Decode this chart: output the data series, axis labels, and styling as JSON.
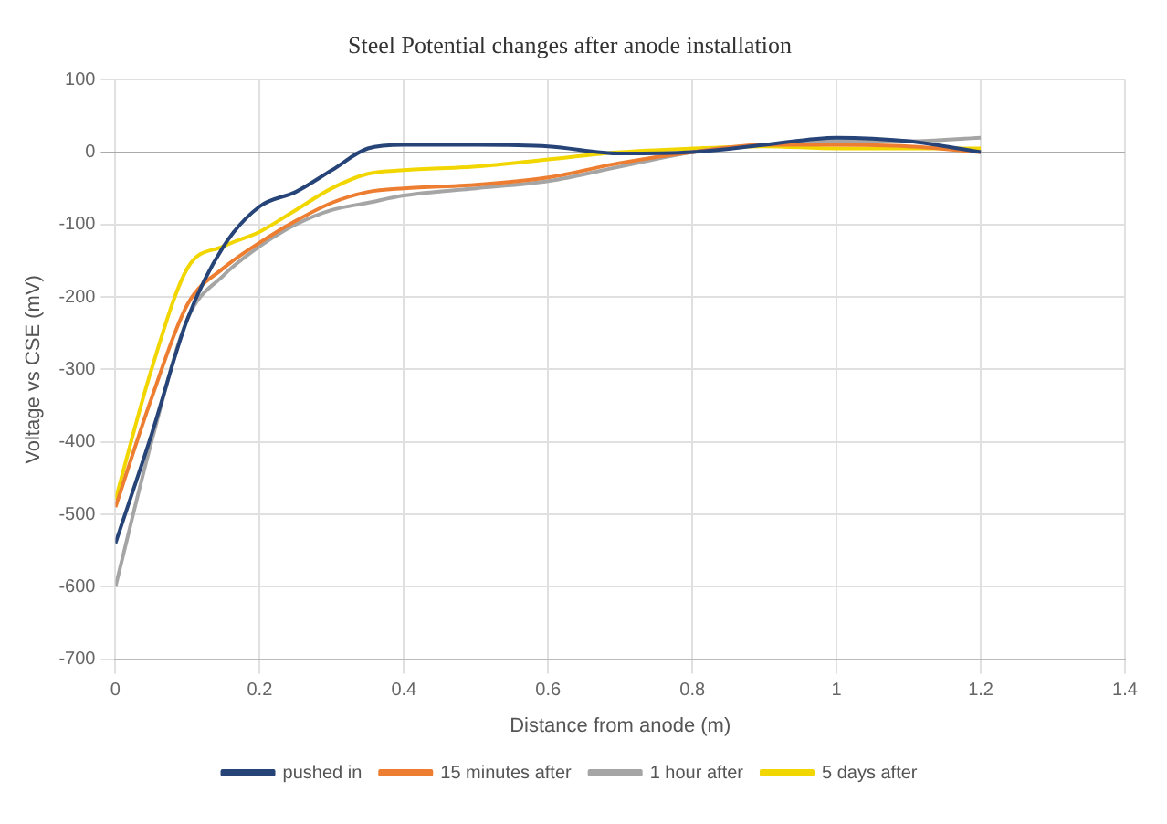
{
  "chart_data": {
    "type": "line",
    "title": "Steel Potential changes after anode installation",
    "xlabel": "Distance from anode (m)",
    "ylabel": "Voltage vs CSE (mV)",
    "x": [
      0,
      0.05,
      0.1,
      0.15,
      0.2,
      0.25,
      0.3,
      0.35,
      0.4,
      0.5,
      0.6,
      0.7,
      0.8,
      0.9,
      1,
      1.1,
      1.2
    ],
    "series": [
      {
        "name": "pushed in",
        "color": "#264478",
        "values": [
          -540,
          -390,
          -230,
          -130,
          -75,
          -55,
          -25,
          5,
          10,
          10,
          8,
          -2,
          0,
          10,
          20,
          15,
          0
        ]
      },
      {
        "name": "15 minutes after",
        "color": "#ed7d31",
        "values": [
          -490,
          -340,
          -210,
          -160,
          -125,
          -95,
          -70,
          -55,
          -50,
          -45,
          -35,
          -15,
          0,
          10,
          10,
          8,
          0
        ]
      },
      {
        "name": "1 hour after",
        "color": "#a5a5a5",
        "values": [
          -600,
          -400,
          -230,
          -170,
          -130,
          -100,
          -80,
          -70,
          -60,
          -50,
          -40,
          -20,
          0,
          10,
          15,
          15,
          20
        ]
      },
      {
        "name": "5 days after",
        "color": "#f2d600",
        "values": [
          -480,
          -300,
          -160,
          -130,
          -110,
          -80,
          -50,
          -30,
          -25,
          -20,
          -10,
          0,
          5,
          8,
          5,
          5,
          5
        ]
      }
    ],
    "xlim": [
      0,
      1.4
    ],
    "xticks": [
      0,
      0.2,
      0.4,
      0.6,
      0.8,
      1,
      1.2,
      1.4
    ],
    "ylim": [
      -700,
      100
    ],
    "yticks": [
      -700,
      -600,
      -500,
      -400,
      -300,
      -200,
      -100,
      0,
      100
    ],
    "grid": true,
    "legend": "bottom",
    "marker": "none",
    "line_style": "solid"
  }
}
